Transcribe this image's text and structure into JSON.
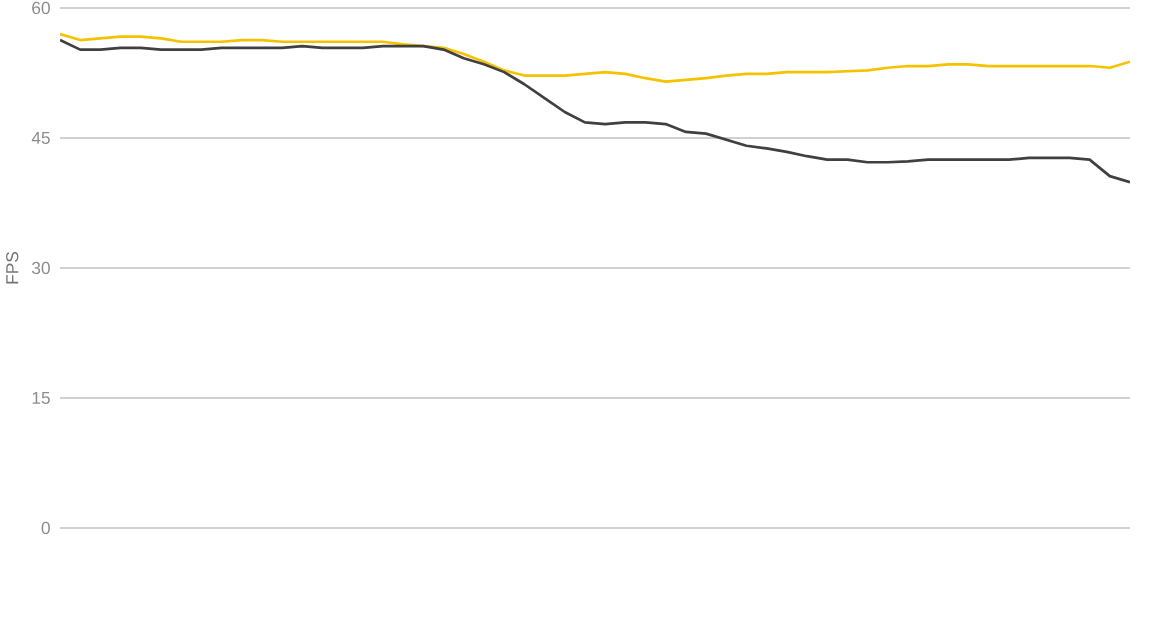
{
  "chart_data": {
    "type": "line",
    "ylabel": "FPS",
    "categories": [
      null,
      null,
      null,
      null,
      null,
      null,
      null,
      null,
      null,
      null,
      null,
      null,
      null,
      null,
      null,
      null,
      null,
      null,
      null,
      null,
      null,
      null,
      null,
      null,
      null,
      null,
      null,
      null,
      null,
      null,
      null,
      null,
      null,
      null,
      null,
      null,
      null,
      null,
      null,
      null,
      null,
      null,
      null,
      null,
      null,
      null,
      null,
      null,
      null,
      null,
      null,
      null,
      null,
      null
    ],
    "series": [
      {
        "color": "#f5c200",
        "values": [
          57.0,
          56.3,
          56.5,
          56.7,
          56.7,
          56.5,
          56.1,
          56.1,
          56.1,
          56.3,
          56.3,
          56.1,
          56.1,
          56.1,
          56.1,
          56.1,
          56.1,
          55.8,
          55.6,
          55.4,
          54.7,
          53.8,
          52.8,
          52.2,
          52.2,
          52.2,
          52.4,
          52.6,
          52.4,
          51.9,
          51.5,
          51.7,
          51.9,
          52.2,
          52.4,
          52.4,
          52.6,
          52.6,
          52.6,
          52.7,
          52.8,
          53.1,
          53.3,
          53.3,
          53.5,
          53.5,
          53.3,
          53.3,
          53.3,
          53.3,
          53.3,
          53.3,
          53.1,
          53.8
        ]
      },
      {
        "color": "#404040",
        "values": [
          56.3,
          55.2,
          55.2,
          55.4,
          55.4,
          55.2,
          55.2,
          55.2,
          55.4,
          55.4,
          55.4,
          55.4,
          55.6,
          55.4,
          55.4,
          55.4,
          55.6,
          55.6,
          55.6,
          55.2,
          54.2,
          53.5,
          52.6,
          51.2,
          49.6,
          48.0,
          46.8,
          46.6,
          46.8,
          46.8,
          46.6,
          45.7,
          45.5,
          44.8,
          44.1,
          43.8,
          43.4,
          42.9,
          42.5,
          42.5,
          42.2,
          42.2,
          42.3,
          42.5,
          42.5,
          42.5,
          42.5,
          42.5,
          42.7,
          42.7,
          42.7,
          42.5,
          40.6,
          39.9
        ]
      }
    ],
    "ylim": [
      0,
      60
    ],
    "yticks": [
      0,
      15,
      30,
      45,
      60
    ],
    "grid": "y",
    "legend": false,
    "marker": "none",
    "line_style": "solid"
  }
}
